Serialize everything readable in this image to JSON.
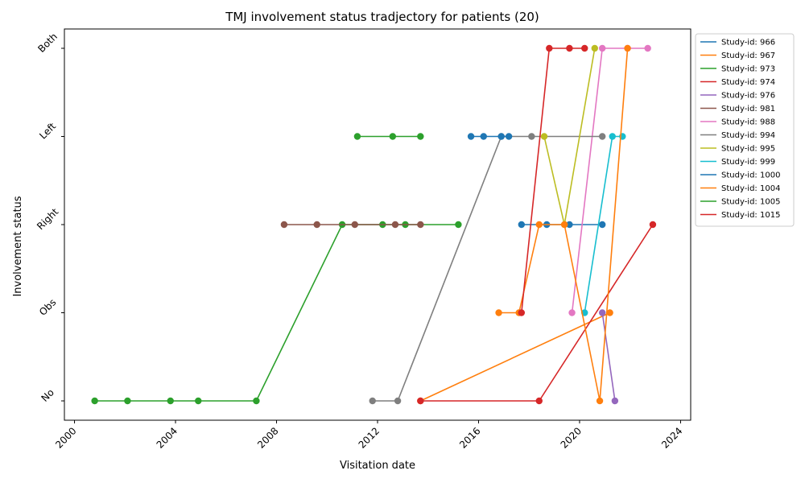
{
  "chart_data": {
    "type": "line",
    "title": "TMJ involvement status tradjectory for patients (20)",
    "xlabel": "Visitation date",
    "ylabel": "Involvement status",
    "x_ticks": [
      2000,
      2004,
      2008,
      2012,
      2016,
      2020,
      2024
    ],
    "xlim": [
      2000.0,
      2024.0
    ],
    "y_categories": [
      "No",
      "Obs",
      "Right",
      "Left",
      "Both"
    ],
    "grid": false,
    "legend_position": "outside-right-top",
    "series": [
      {
        "name": "Study-id: 966",
        "color": "#1f77b4",
        "points": [
          [
            2017.7,
            "Right"
          ],
          [
            2018.7,
            "Right"
          ],
          [
            2019.6,
            "Right"
          ],
          [
            2020.9,
            "Right"
          ]
        ]
      },
      {
        "name": "Study-id: 967",
        "color": "#ff7f0e",
        "points": [
          [
            2013.7,
            "No"
          ],
          [
            2021.2,
            "Obs"
          ]
        ]
      },
      {
        "name": "Study-id: 973",
        "color": "#2ca02c",
        "points": [
          [
            2000.8,
            "No"
          ],
          [
            2002.1,
            "No"
          ],
          [
            2003.8,
            "No"
          ],
          [
            2004.9,
            "No"
          ],
          [
            2007.2,
            "No"
          ],
          [
            2010.6,
            "Right"
          ],
          [
            2012.2,
            "Right"
          ],
          [
            2013.1,
            "Right"
          ],
          [
            2015.2,
            "Right"
          ]
        ]
      },
      {
        "name": "Study-id: 974",
        "color": "#d62728",
        "points": [
          [
            2013.7,
            "No"
          ],
          [
            2018.4,
            "No"
          ],
          [
            2022.9,
            "Right"
          ]
        ]
      },
      {
        "name": "Study-id: 976",
        "color": "#9467bd",
        "points": [
          [
            2020.9,
            "Obs"
          ],
          [
            2021.4,
            "No"
          ]
        ]
      },
      {
        "name": "Study-id: 981",
        "color": "#8c564b",
        "points": [
          [
            2008.3,
            "Right"
          ],
          [
            2009.6,
            "Right"
          ],
          [
            2011.1,
            "Right"
          ],
          [
            2012.7,
            "Right"
          ],
          [
            2013.7,
            "Right"
          ]
        ]
      },
      {
        "name": "Study-id: 988",
        "color": "#e377c2",
        "points": [
          [
            2019.7,
            "Obs"
          ],
          [
            2020.9,
            "Both"
          ],
          [
            2021.9,
            "Both"
          ],
          [
            2022.7,
            "Both"
          ]
        ]
      },
      {
        "name": "Study-id: 994",
        "color": "#7f7f7f",
        "points": [
          [
            2011.8,
            "No"
          ],
          [
            2012.8,
            "No"
          ],
          [
            2016.9,
            "Left"
          ],
          [
            2018.1,
            "Left"
          ],
          [
            2020.9,
            "Left"
          ]
        ]
      },
      {
        "name": "Study-id: 995",
        "color": "#bcbd22",
        "points": [
          [
            2018.6,
            "Left"
          ],
          [
            2019.4,
            "Right"
          ],
          [
            2020.6,
            "Both"
          ]
        ]
      },
      {
        "name": "Study-id: 999",
        "color": "#17becf",
        "points": [
          [
            2020.2,
            "Obs"
          ],
          [
            2021.3,
            "Left"
          ],
          [
            2021.7,
            "Left"
          ]
        ]
      },
      {
        "name": "Study-id: 1000",
        "color": "#1f77b4",
        "points": [
          [
            2015.7,
            "Left"
          ],
          [
            2016.2,
            "Left"
          ],
          [
            2016.9,
            "Left"
          ],
          [
            2017.2,
            "Left"
          ]
        ]
      },
      {
        "name": "Study-id: 1004",
        "color": "#ff7f0e",
        "points": [
          [
            2016.8,
            "Obs"
          ],
          [
            2017.6,
            "Obs"
          ],
          [
            2018.4,
            "Right"
          ],
          [
            2019.4,
            "Right"
          ],
          [
            2020.8,
            "No"
          ],
          [
            2021.9,
            "Both"
          ]
        ]
      },
      {
        "name": "Study-id: 1005",
        "color": "#2ca02c",
        "points": [
          [
            2011.2,
            "Left"
          ],
          [
            2012.6,
            "Left"
          ],
          [
            2013.7,
            "Left"
          ]
        ]
      },
      {
        "name": "Study-id: 1015",
        "color": "#d62728",
        "points": [
          [
            2017.7,
            "Obs"
          ],
          [
            2018.8,
            "Both"
          ],
          [
            2019.6,
            "Both"
          ],
          [
            2020.2,
            "Both"
          ]
        ]
      }
    ]
  }
}
